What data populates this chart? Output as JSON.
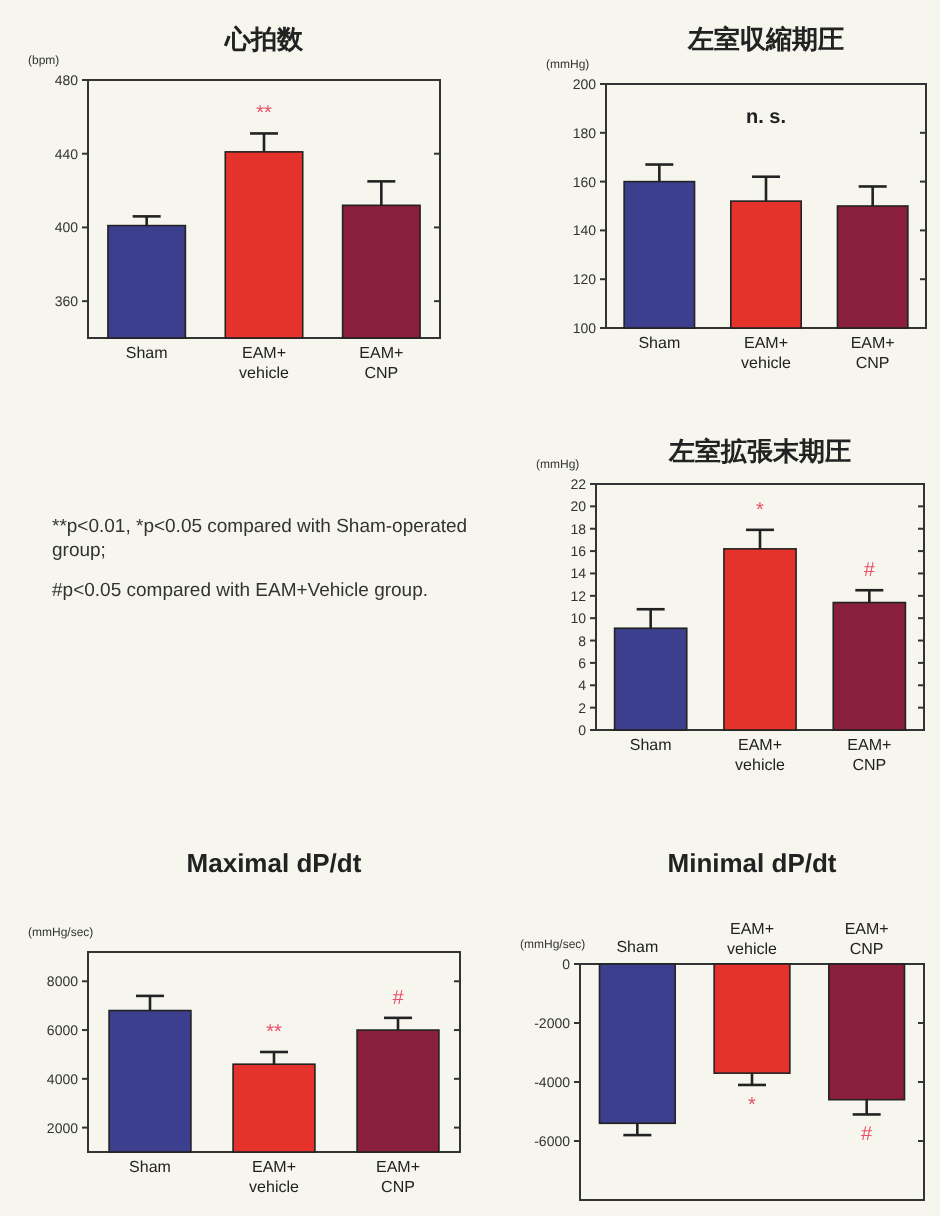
{
  "chart_data": [
    {
      "type": "bar",
      "title": "心拍数",
      "ylabel": "(bpm)",
      "categories": [
        "Sham",
        "EAM+ vehicle",
        "EAM+ CNP"
      ],
      "values": [
        401,
        441,
        412
      ],
      "errors": [
        5,
        10,
        13
      ],
      "colors": [
        "#3b3f8e",
        "#e5322b",
        "#8a1f3c"
      ],
      "ylim": [
        340,
        480
      ],
      "yticks": [
        360,
        400,
        440,
        480
      ],
      "annotations": [
        {
          "text": "**",
          "x": "EAM+ vehicle",
          "y": 441
        }
      ]
    },
    {
      "type": "bar",
      "title": "左室収縮期圧",
      "ylabel": "(mmHg)",
      "categories": [
        "Sham",
        "EAM+ vehicle",
        "EAM+ CNP"
      ],
      "values": [
        160,
        152,
        150
      ],
      "errors": [
        7,
        10,
        8
      ],
      "colors": [
        "#3b3f8e",
        "#e5322b",
        "#8a1f3c"
      ],
      "ylim": [
        100,
        200
      ],
      "yticks": [
        100,
        120,
        140,
        160,
        180,
        200
      ],
      "annotations": [
        "n. s."
      ]
    },
    {
      "type": "other",
      "annotations": [
        "**p<0.01, *p<0.05 compared with Sham-operated group;",
        "#p<0.05 compared with EAM+Vehicle group."
      ]
    },
    {
      "type": "bar",
      "title": "左室拡張末期圧",
      "ylabel": "(mmHg)",
      "categories": [
        "Sham",
        "EAM+ vehicle",
        "EAM+ CNP"
      ],
      "values": [
        9.1,
        16.2,
        11.4
      ],
      "errors": [
        1.7,
        1.7,
        1.1
      ],
      "colors": [
        "#3b3f8e",
        "#e5322b",
        "#8a1f3c"
      ],
      "ylim": [
        0,
        22
      ],
      "yticks": [
        0,
        2,
        4,
        6,
        8,
        10,
        12,
        14,
        16,
        18,
        20,
        22
      ],
      "annotations": [
        {
          "text": "*",
          "x": "EAM+ vehicle",
          "y": 16.2
        },
        {
          "text": "#",
          "x": "EAM+ CNP",
          "y": 11.4
        }
      ]
    },
    {
      "type": "bar",
      "title": "Maximal dP/dt",
      "ylabel": "(mmHg/sec)",
      "categories": [
        "Sham",
        "EAM+ vehicle",
        "EAM+ CNP"
      ],
      "values": [
        6800,
        4600,
        6000
      ],
      "errors": [
        600,
        500,
        500
      ],
      "colors": [
        "#3b3f8e",
        "#e5322b",
        "#8a1f3c"
      ],
      "ylim": [
        1000,
        9200
      ],
      "yticks": [
        2000,
        4000,
        6000,
        8000
      ],
      "annotations": [
        {
          "text": "**",
          "x": "EAM+ vehicle",
          "y": 4600
        },
        {
          "text": "#",
          "x": "EAM+ CNP",
          "y": 6000
        }
      ]
    },
    {
      "type": "bar",
      "title": "Minimal dP/dt",
      "ylabel": "(mmHg/sec)",
      "categories": [
        "Sham",
        "EAM+ vehicle",
        "EAM+ CNP"
      ],
      "values": [
        -5400,
        -3700,
        -4600
      ],
      "errors": [
        400,
        400,
        500
      ],
      "colors": [
        "#3b3f8e",
        "#e5322b",
        "#8a1f3c"
      ],
      "ylim": [
        -8000,
        0
      ],
      "yticks": [
        -6000,
        -4000,
        -2000,
        0
      ],
      "annotations": [
        {
          "text": "*",
          "x": "EAM+ vehicle",
          "y": -3700
        },
        {
          "text": "#",
          "x": "EAM+ CNP",
          "y": -4600
        }
      ]
    }
  ]
}
